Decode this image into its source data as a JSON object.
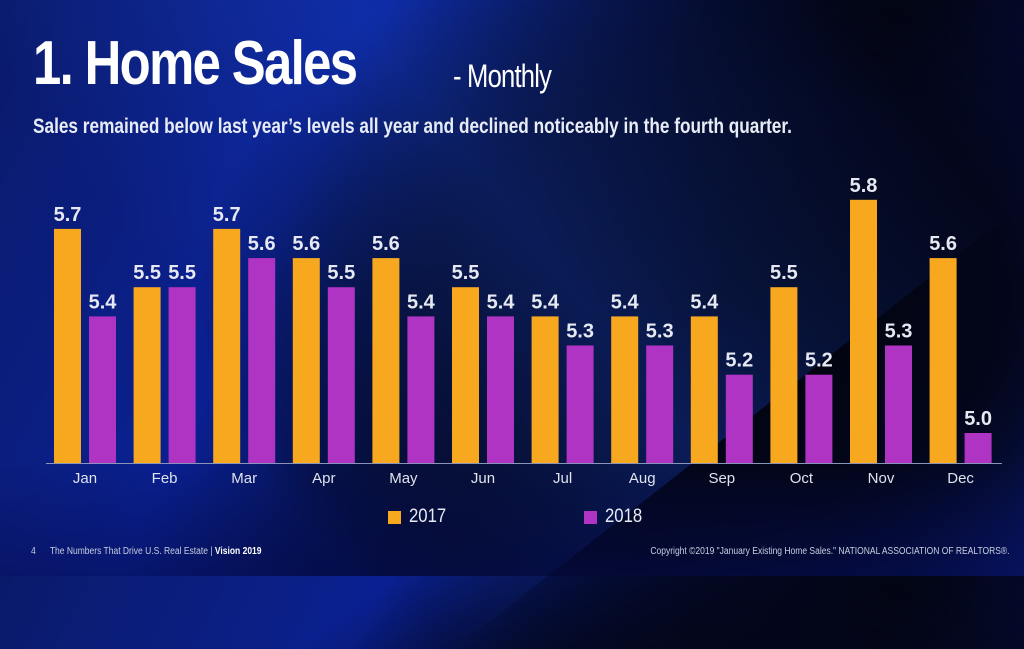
{
  "header": {
    "title": "1. Home Sales",
    "title_suffix": "- Monthly",
    "subtitle": "Sales remained below last year’s levels all year and declined noticeably in the fourth quarter."
  },
  "colors": {
    "series_2017": "#f7a81f",
    "series_2018": "#b034c3",
    "baseline": "#8a93b8"
  },
  "chart_data": {
    "type": "bar",
    "title": "1. Home Sales - Monthly",
    "xlabel": "",
    "ylabel": "",
    "categories": [
      "Jan",
      "Feb",
      "Mar",
      "Apr",
      "May",
      "Jun",
      "Jul",
      "Aug",
      "Sep",
      "Oct",
      "Nov",
      "Dec"
    ],
    "series": [
      {
        "name": "2017",
        "values": [
          5.7,
          5.5,
          5.7,
          5.6,
          5.6,
          5.5,
          5.4,
          5.4,
          5.4,
          5.5,
          5.8,
          5.6
        ]
      },
      {
        "name": "2018",
        "values": [
          5.4,
          5.5,
          5.6,
          5.5,
          5.4,
          5.4,
          5.3,
          5.3,
          5.2,
          5.2,
          5.3,
          5.0
        ]
      }
    ],
    "value_labels": {
      "2017": [
        "5.7",
        "5.5",
        "5.7",
        "5.6",
        "5.6",
        "5.5",
        "5.4",
        "5.4",
        "5.4",
        "5.5",
        "5.8",
        "5.6"
      ],
      "2018": [
        "5.4",
        "5.5",
        "5.6",
        "5.5",
        "5.4",
        "5.4",
        "5.3",
        "5.3",
        "5.2",
        "5.2",
        "5.3",
        "5.0"
      ]
    },
    "ylim": [
      4.9,
      5.8
    ],
    "grid": false,
    "legend_position": "bottom-center"
  },
  "legend": [
    {
      "label": "2017"
    },
    {
      "label": "2018"
    }
  ],
  "footer": {
    "page_number": "4",
    "left_text": "The Numbers That Drive U.S. Real Estate | ",
    "brand": "Vision 2019",
    "right_text": "Copyright ©2019 \"January Existing Home Sales.\" NATIONAL ASSOCIATION OF REALTORS®."
  }
}
